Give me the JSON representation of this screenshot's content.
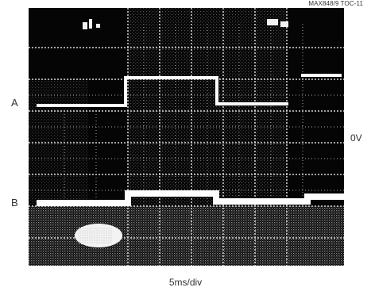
{
  "figure": {
    "reference_code": "MAX848/9 TOC-11",
    "trace_a_label": "A",
    "trace_b_label": "B",
    "reference_level": "0V",
    "timebase": "5ms/div"
  },
  "colors": {
    "screen": "#050505",
    "grid": "#d8d8d8",
    "trace": "#ffffff"
  }
}
